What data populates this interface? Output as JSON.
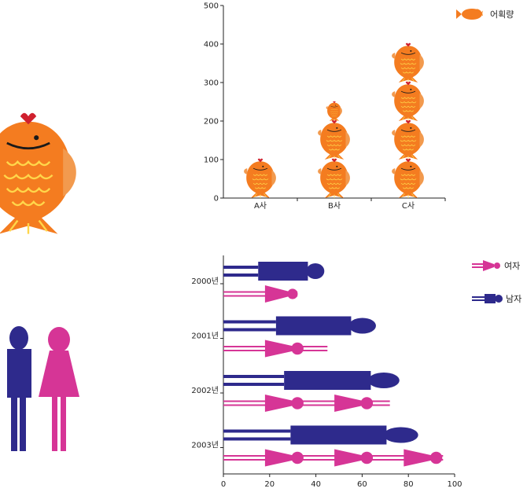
{
  "chart_data": [
    {
      "type": "bar",
      "categories": [
        "A사",
        "B사",
        "C사"
      ],
      "series": [
        {
          "name": "어획량",
          "values": [
            100,
            250,
            400
          ]
        }
      ],
      "ylim": [
        0,
        500
      ],
      "yticks": [
        0,
        100,
        200,
        300,
        400,
        500
      ],
      "unit_per_icon": 100,
      "legend_position": "top-right",
      "grid": false
    },
    {
      "type": "bar",
      "orientation": "horizontal",
      "categories": [
        "2000년",
        "2001년",
        "2002년",
        "2003년"
      ],
      "series": [
        {
          "name": "남자",
          "values": [
            43,
            65,
            75,
            83
          ],
          "color": "#2e2a8c"
        },
        {
          "name": "여자",
          "values": [
            32,
            45,
            72,
            95
          ],
          "color": "#d63596"
        }
      ],
      "xlim": [
        0,
        100
      ],
      "xticks": [
        0,
        20,
        40,
        60,
        80,
        100
      ],
      "legend_position": "right",
      "grid": false
    }
  ],
  "colors": {
    "fish_body": "#f47c20",
    "fish_scales": "#ffd64a",
    "fish_crown": "#d0202e",
    "male": "#2e2a8c",
    "female": "#d63596"
  },
  "icons": [
    "fish-icon",
    "man-icon",
    "woman-icon"
  ]
}
